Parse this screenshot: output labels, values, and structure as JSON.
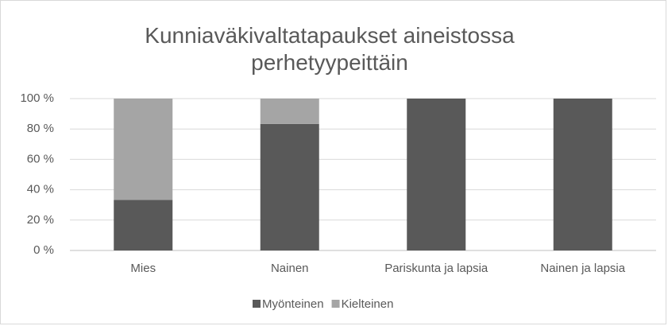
{
  "chart_data": {
    "type": "stacked_bar",
    "title": "Kunniaväkivaltatapaukset aineistossa perhetyypeittäin",
    "categories": [
      "Mies",
      "Nainen",
      "Pariskunta ja lapsia",
      "Nainen ja lapsia"
    ],
    "series": [
      {
        "name": "Myönteinen",
        "color": "#595959",
        "values": [
          33.3,
          83.3,
          100,
          100
        ]
      },
      {
        "name": "Kielteinen",
        "color": "#a5a5a5",
        "values": [
          66.7,
          16.7,
          0,
          0
        ]
      }
    ],
    "ylim": [
      0,
      100
    ],
    "yticks": [
      {
        "value": 0,
        "label": "0 %"
      },
      {
        "value": 20,
        "label": "20 %"
      },
      {
        "value": 40,
        "label": "40 %"
      },
      {
        "value": 60,
        "label": "60 %"
      },
      {
        "value": 80,
        "label": "80 %"
      },
      {
        "value": 100,
        "label": "100 %"
      }
    ],
    "grid": true,
    "legend": "bottom"
  }
}
